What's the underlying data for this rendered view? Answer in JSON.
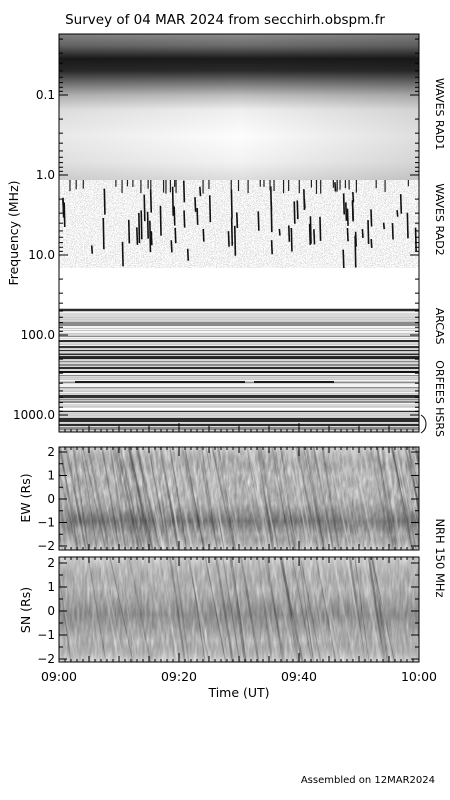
{
  "title": "Survey of 04 MAR 2024 from secchirh.obspm.fr",
  "footer": "Assembled on 12MAR2024",
  "chart_data": [
    {
      "type": "heatmap",
      "name": "dynamic-spectrum",
      "ylabel": "Frequency (MHz)",
      "yscale": "log",
      "yticks": [
        {
          "value": 0.1,
          "label": "0.1"
        },
        {
          "value": 1.0,
          "label": "1.0"
        },
        {
          "value": 10.0,
          "label": "10.0"
        },
        {
          "value": 100.0,
          "label": "100.0"
        },
        {
          "value": 1000.0,
          "label": "1000.0"
        }
      ],
      "ylim": [
        0.03,
        1500
      ],
      "instruments": [
        {
          "label": "WAVES RAD1",
          "freq_range": [
            0.03,
            1.0
          ]
        },
        {
          "label": "WAVES RAD2",
          "freq_range": [
            1.0,
            13.0
          ]
        },
        {
          "label": "ARCAS",
          "freq_range": [
            40.0,
            150.0
          ]
        },
        {
          "label": "ORFEES",
          "freq_range": [
            150.0,
            1000.0
          ]
        },
        {
          "label": "HSRS",
          "freq_range": [
            1000.0,
            1500.0
          ]
        }
      ]
    },
    {
      "type": "heatmap",
      "name": "nrh-ew",
      "ylabel": "EW (Rs)",
      "yticks": [
        {
          "value": 2,
          "label": "2"
        },
        {
          "value": 1,
          "label": "1"
        },
        {
          "value": 0,
          "label": "0"
        },
        {
          "value": -1,
          "label": "−1"
        },
        {
          "value": -2,
          "label": "−2"
        }
      ],
      "ylim": [
        -2.1,
        2.4
      ]
    },
    {
      "type": "heatmap",
      "name": "nrh-sn",
      "ylabel": "SN (Rs)",
      "yticks": [
        {
          "value": 2,
          "label": "2"
        },
        {
          "value": 1,
          "label": "1"
        },
        {
          "value": 0,
          "label": "0"
        },
        {
          "value": -1,
          "label": "−1"
        },
        {
          "value": -2,
          "label": "−2"
        }
      ],
      "ylim": [
        -2.1,
        2.4
      ]
    }
  ],
  "nrh_label": "NRH 150 MHz",
  "xaxis": {
    "label": "Time (UT)",
    "range": [
      "09:00",
      "10:00"
    ],
    "major_ticks": [
      {
        "time": "09:00",
        "label": "09:00"
      },
      {
        "time": "09:20",
        "label": "09:20"
      },
      {
        "time": "09:40",
        "label": "09:40"
      },
      {
        "time": "10:00",
        "label": "10:00"
      }
    ]
  }
}
